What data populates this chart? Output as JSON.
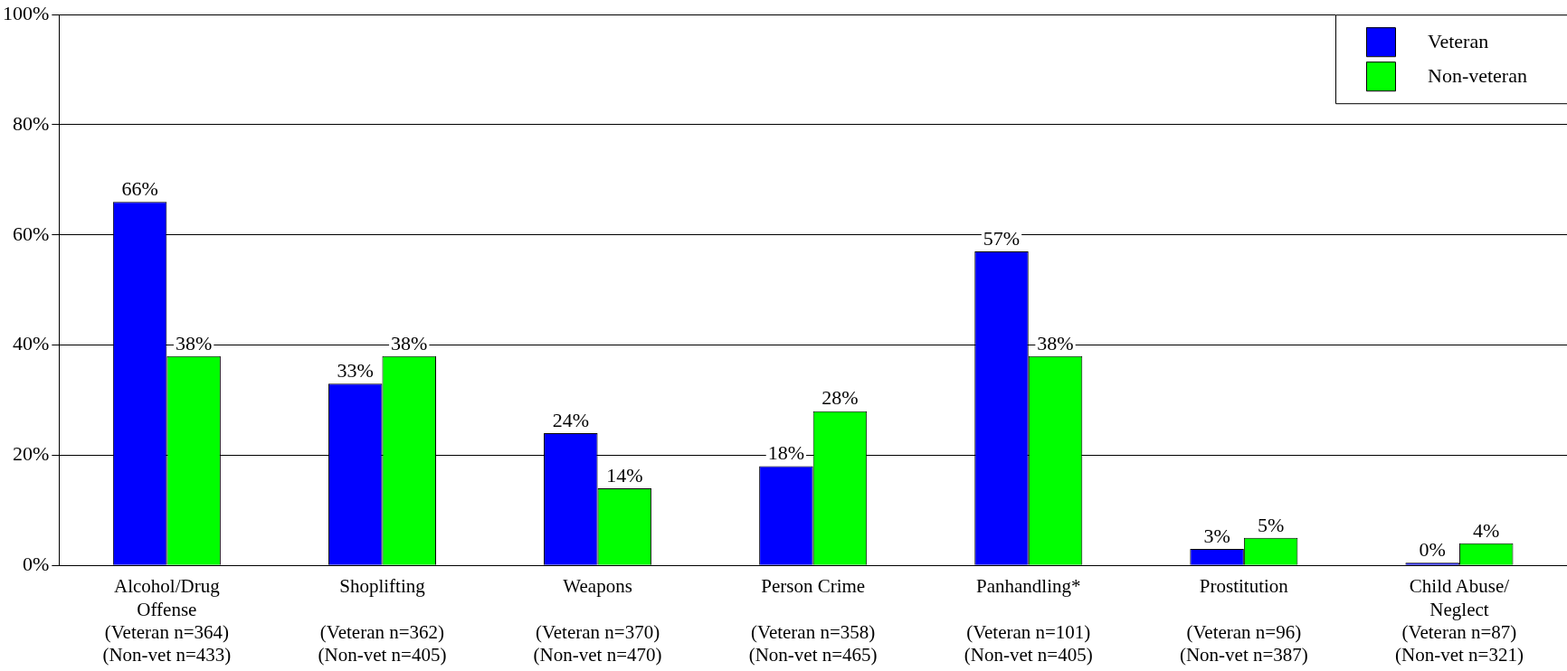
{
  "chart_data": {
    "type": "bar",
    "categories": [
      "Alcohol/Drug\nOffense\n(Veteran n=364)\n(Non-vet n=433)",
      "Shoplifting\n\n(Veteran n=362)\n(Non-vet n=405)",
      "Weapons\n\n(Veteran n=370)\n(Non-vet n=470)",
      "Person Crime\n\n(Veteran n=358)\n(Non-vet n=465)",
      "Panhandling*\n\n(Veteran n=101)\n(Non-vet n=405)",
      "Prostitution\n\n(Veteran n=96)\n(Non-vet n=387)",
      "Child Abuse/\nNeglect\n(Veteran n=87)\n(Non-vet n=321)"
    ],
    "series": [
      {
        "name": "Veteran",
        "color": "#0000ff",
        "values": [
          66,
          33,
          24,
          18,
          57,
          3,
          0
        ],
        "value_labels": [
          "66%",
          "33%",
          "24%",
          "18%",
          "57%",
          "3%",
          "0%"
        ]
      },
      {
        "name": "Non-veteran",
        "color": "#00ff00",
        "values": [
          38,
          38,
          14,
          28,
          38,
          5,
          4
        ],
        "value_labels": [
          "38%",
          "38%",
          "14%",
          "28%",
          "38%",
          "5%",
          "4%"
        ]
      }
    ],
    "ylim": [
      0,
      100
    ],
    "yticks": [
      {
        "value": 0,
        "label": "0%"
      },
      {
        "value": 20,
        "label": "20%"
      },
      {
        "value": 40,
        "label": "40%"
      },
      {
        "value": 60,
        "label": "60%"
      },
      {
        "value": 80,
        "label": "80%"
      },
      {
        "value": 100,
        "label": "100%"
      }
    ],
    "grid": "y",
    "legend": "top right"
  }
}
